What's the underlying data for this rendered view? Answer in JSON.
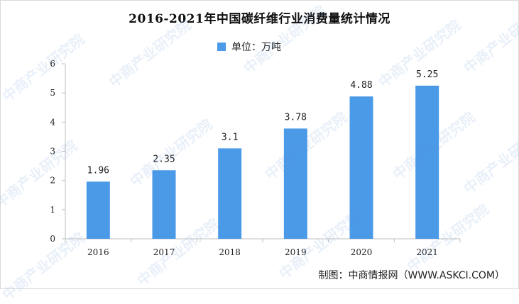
{
  "title": "2016-2021年中国碳纤维行业消费量统计情况",
  "legend": {
    "label": "单位：万吨"
  },
  "source": "制图：中商情报网（WWW.ASKCI.COM）",
  "watermark": "中商产业研究院",
  "colors": {
    "bar": "#4a9ae8",
    "axis": "#bfbfbf",
    "text": "#222222"
  },
  "chart_data": {
    "type": "bar",
    "categories": [
      "2016",
      "2017",
      "2018",
      "2019",
      "2020",
      "2021"
    ],
    "values": [
      1.96,
      2.35,
      3.1,
      3.78,
      4.88,
      5.25
    ],
    "value_labels": [
      "1.96",
      "2.35",
      "3.1",
      "3.78",
      "4.88",
      "5.25"
    ],
    "title": "2016-2021年中国碳纤维行业消费量统计情况",
    "xlabel": "",
    "ylabel": "",
    "ylim": [
      0,
      6
    ],
    "yticks": [
      0,
      1,
      2,
      3,
      4,
      5,
      6
    ],
    "grid": false,
    "legend_position": "top"
  }
}
